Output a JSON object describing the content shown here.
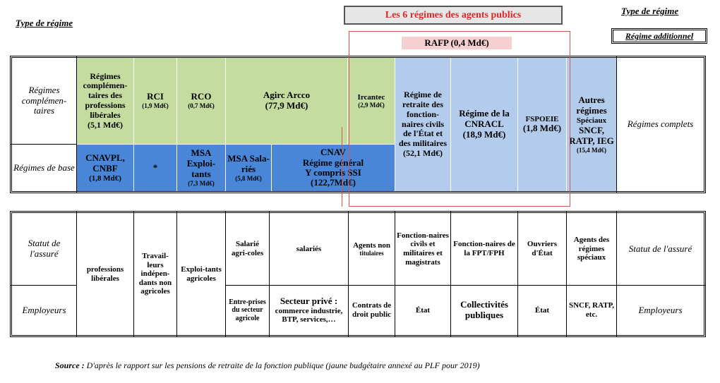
{
  "header": {
    "left_label": "Type de régime",
    "right_label": "Type de régime",
    "right_box": "Régime additionnel",
    "title": "Les 6 régimes des agents publics",
    "rafp": "RAFP (0,4 Md€)"
  },
  "table1": {
    "row_labels": {
      "complementaires": "Régimes complémen-taires",
      "base": "Régimes de base"
    },
    "right_label": "Régimes complets",
    "cells": {
      "liberales_title": "Régimes complémen-taires des professions libérales",
      "liberales_amount": "(5,1 Md€)",
      "rci_title": "RCI",
      "rci_amount": "(1,9 Md€)",
      "rco_title": "RCO",
      "rco_amount": "(0,7 Md€)",
      "agirc_title": "Agirc Arcco",
      "agirc_amount": "(77,9 Md€)",
      "ircantec_title": "Ircantec",
      "ircantec_amount": "(2,9 Md€)",
      "cnavpl_title": "CNAVPL, CNBF",
      "cnavpl_amount": "(1,8 Md€)",
      "star": "*",
      "msa_exp_title": "MSA Exploi-tants",
      "msa_exp_amount": "(7,3 Md€)",
      "msa_sal_title": "MSA Sala-riés",
      "msa_sal_amount": "(5,8 Md€)",
      "cnav_title": "CNAV",
      "cnav_sub1": "Régime général",
      "cnav_sub2": "Y compris SSI",
      "cnav_amount": "(122,7Md€)",
      "fonctionnaires_title": "Régime de retraite des fonction-naires civils de l'État et des militaires",
      "fonctionnaires_amount": "(52,1 Md€)",
      "cnracl_title": "Régime de la CNRACL",
      "cnracl_amount": "(18,9 Md€)",
      "fspoeie_title": "FSPOEIE",
      "fspoeie_amount": "(1,8 Md€)",
      "autres_title": "Autres régimes",
      "autres_sub": "Spéciaux",
      "autres_list": "SNCF, RATP, IEG",
      "autres_amount": "(15,4 Md€)"
    }
  },
  "table2": {
    "row_labels": {
      "statut": "Statut de l'assuré",
      "employeurs": "Employeurs"
    },
    "right_statut": "Statut de l'assuré",
    "right_employeurs": "Employeurs",
    "cells": {
      "prof_liberales": "professions libérales",
      "travailleurs": "Travail-leurs indépen-dants non agricoles",
      "exploitants": "Exploi-tants agricoles",
      "salarie_agricoles": "Salarié agri-coles",
      "salaries": "salariés",
      "agents_non_tit_title": "Agents non",
      "agents_non_tit_sub": "titulaires",
      "fonctionnaires_civils": "Fonction-naires civils et militaires et magistrats",
      "fonctionnaires_fpt": "Fonction-naires de la FPT/FPH",
      "ouvriers": "Ouvriers d'État",
      "agents_speciaux": "Agents des régimes spéciaux",
      "entreprises_agricole": "Entre-prises du secteur agricole",
      "secteur_prive_title": "Secteur privé :",
      "secteur_prive_body": "commerce industrie, BTP, services,…",
      "contrats_droit": "Contrats de droit public",
      "etat1": "État",
      "collectivites": "Collectivités publiques",
      "etat2": "État",
      "sncf_ratp": "SNCF, RATP, etc."
    }
  },
  "source": {
    "label": "Source :",
    "text": " D'après le rapport sur les pensions de retraite de la fonction publique (jaune budgétaire annexé au PLF pour 2019)"
  },
  "colors": {
    "green": "#c5dca0",
    "blue": "#4a86d8",
    "light_blue": "#b4cceb",
    "red_outline": "#d9534f",
    "rafp_bg": "#f6d0d0"
  }
}
